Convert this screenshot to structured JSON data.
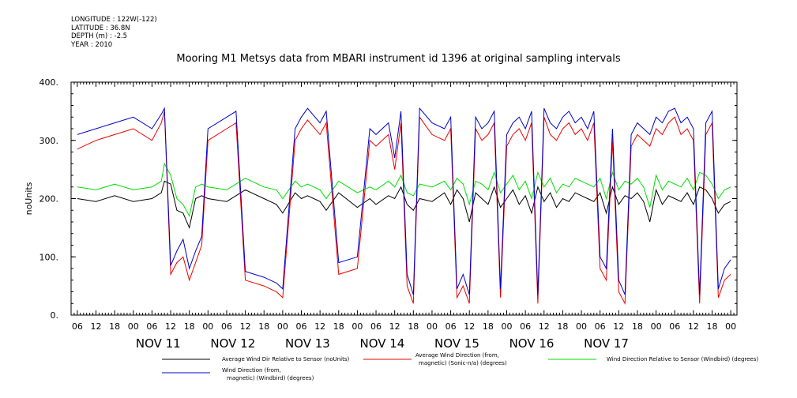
{
  "metadata": {
    "longitude": "LONGITUDE : 122W(-122)",
    "latitude": "LATITUDE : 36.8N",
    "depth": "DEPTH (m) : -2.5",
    "year": "YEAR : 2010"
  },
  "chart_data": {
    "type": "line",
    "title": "Mooring M1 Metsys data from MBARI instrument id 1396 at original sampling intervals",
    "xlabel": "",
    "ylabel": "noUnits",
    "ylim": [
      0,
      400
    ],
    "y_ticks": [
      "0.",
      "100.",
      "200.",
      "300.",
      "400."
    ],
    "x_range_hours": [
      -20,
      194
    ],
    "hour_tick_labels": [
      "00",
      "06",
      "12",
      "18"
    ],
    "day_labels": [
      "NOV 11",
      "NOV 12",
      "NOV 13",
      "NOV 14",
      "NOV 15",
      "NOV 16",
      "NOV 17"
    ],
    "grid": false,
    "legend_placement": "bottom",
    "series": [
      {
        "name": "Average Wind Dir Relative to Sensor (noUnits)",
        "color": "#000000",
        "x": [
          -18,
          -12,
          -6,
          0,
          6,
          9,
          10,
          12,
          14,
          16,
          18,
          20,
          22,
          24,
          30,
          33,
          36,
          42,
          46,
          48,
          52,
          54,
          56,
          60,
          62,
          66,
          72,
          76,
          78,
          82,
          84,
          86,
          88,
          90,
          92,
          96,
          100,
          102,
          104,
          106,
          108,
          110,
          112,
          114,
          116,
          118,
          120,
          122,
          124,
          126,
          128,
          130,
          132,
          134,
          136,
          138,
          140,
          142,
          144,
          146,
          148,
          150,
          152,
          154,
          156,
          158,
          160,
          162,
          164,
          166,
          168,
          170,
          172,
          174,
          176,
          178,
          180,
          182,
          184,
          186,
          188,
          190,
          192
        ],
        "values": [
          200,
          195,
          205,
          195,
          200,
          210,
          230,
          225,
          180,
          175,
          150,
          200,
          205,
          200,
          195,
          205,
          215,
          200,
          190,
          175,
          210,
          200,
          205,
          195,
          180,
          210,
          185,
          200,
          190,
          205,
          200,
          220,
          190,
          180,
          200,
          195,
          210,
          190,
          215,
          200,
          160,
          210,
          200,
          190,
          220,
          185,
          200,
          215,
          190,
          205,
          175,
          220,
          195,
          210,
          185,
          200,
          195,
          210,
          205,
          200,
          195,
          210,
          175,
          220,
          190,
          205,
          200,
          210,
          195,
          160,
          215,
          190,
          205,
          200,
          195,
          210,
          190,
          220,
          215,
          200,
          175,
          190,
          195
        ]
      },
      {
        "name": "Average Wind Direction (from, magnetic) (Sonic-n/a) (degrees)",
        "color": "#ee0000",
        "x": [
          -18,
          -12,
          -6,
          0,
          6,
          9,
          10,
          12,
          14,
          16,
          18,
          20,
          22,
          24,
          30,
          33,
          36,
          42,
          46,
          48,
          52,
          54,
          56,
          60,
          62,
          66,
          72,
          76,
          78,
          82,
          84,
          86,
          88,
          90,
          92,
          96,
          100,
          102,
          104,
          106,
          108,
          110,
          112,
          114,
          116,
          118,
          120,
          122,
          124,
          126,
          128,
          130,
          132,
          134,
          136,
          138,
          140,
          142,
          144,
          146,
          148,
          150,
          152,
          154,
          156,
          158,
          160,
          162,
          164,
          166,
          168,
          170,
          172,
          174,
          176,
          178,
          180,
          182,
          184,
          186,
          188,
          190,
          192
        ],
        "values": [
          285,
          300,
          310,
          320,
          300,
          330,
          350,
          70,
          90,
          100,
          60,
          90,
          120,
          300,
          320,
          330,
          60,
          50,
          40,
          30,
          300,
          320,
          335,
          310,
          330,
          70,
          80,
          300,
          290,
          310,
          250,
          330,
          50,
          20,
          340,
          310,
          300,
          320,
          30,
          50,
          20,
          320,
          300,
          310,
          330,
          30,
          290,
          310,
          320,
          300,
          330,
          20,
          340,
          310,
          300,
          320,
          330,
          310,
          320,
          300,
          330,
          80,
          60,
          300,
          40,
          20,
          290,
          310,
          300,
          290,
          320,
          310,
          330,
          340,
          310,
          320,
          300,
          20,
          310,
          330,
          30,
          60,
          70
        ]
      },
      {
        "name": "Wind Direction Relative to Sensor (Windbird) (degrees)",
        "color": "#00dd00",
        "x": [
          -18,
          -12,
          -6,
          0,
          6,
          9,
          10,
          12,
          14,
          16,
          18,
          20,
          22,
          24,
          30,
          33,
          36,
          42,
          46,
          48,
          52,
          54,
          56,
          60,
          62,
          66,
          72,
          76,
          78,
          82,
          84,
          86,
          88,
          90,
          92,
          96,
          100,
          102,
          104,
          106,
          108,
          110,
          112,
          114,
          116,
          118,
          120,
          122,
          124,
          126,
          128,
          130,
          132,
          134,
          136,
          138,
          140,
          142,
          144,
          146,
          148,
          150,
          152,
          154,
          156,
          158,
          160,
          162,
          164,
          166,
          168,
          170,
          172,
          174,
          176,
          178,
          180,
          182,
          184,
          186,
          188,
          190,
          192
        ],
        "values": [
          220,
          215,
          225,
          215,
          220,
          230,
          260,
          240,
          200,
          190,
          170,
          220,
          225,
          220,
          215,
          225,
          235,
          220,
          215,
          200,
          230,
          220,
          225,
          215,
          200,
          230,
          210,
          220,
          215,
          230,
          220,
          240,
          210,
          205,
          225,
          220,
          230,
          215,
          235,
          225,
          190,
          230,
          225,
          215,
          245,
          210,
          225,
          240,
          215,
          230,
          200,
          245,
          220,
          235,
          210,
          225,
          220,
          235,
          230,
          225,
          220,
          235,
          200,
          245,
          215,
          230,
          225,
          235,
          220,
          185,
          240,
          215,
          230,
          225,
          220,
          235,
          215,
          245,
          240,
          225,
          200,
          215,
          220
        ]
      },
      {
        "name": "Wind Direction (from, magnetic) (Windbird) (degrees)",
        "color": "#0000cc",
        "x": [
          -18,
          -12,
          -6,
          0,
          6,
          9,
          10,
          12,
          14,
          16,
          18,
          20,
          22,
          24,
          30,
          33,
          36,
          42,
          46,
          48,
          52,
          54,
          56,
          60,
          62,
          66,
          72,
          76,
          78,
          82,
          84,
          86,
          88,
          90,
          92,
          96,
          100,
          102,
          104,
          106,
          108,
          110,
          112,
          114,
          116,
          118,
          120,
          122,
          124,
          126,
          128,
          130,
          132,
          134,
          136,
          138,
          140,
          142,
          144,
          146,
          148,
          150,
          152,
          154,
          156,
          158,
          160,
          162,
          164,
          166,
          168,
          170,
          172,
          174,
          176,
          178,
          180,
          182,
          184,
          186,
          188,
          190,
          192
        ],
        "values": [
          310,
          320,
          330,
          340,
          320,
          345,
          355,
          85,
          110,
          130,
          80,
          110,
          135,
          320,
          340,
          350,
          75,
          65,
          55,
          45,
          320,
          340,
          355,
          330,
          350,
          90,
          100,
          320,
          310,
          330,
          270,
          350,
          70,
          35,
          355,
          330,
          320,
          340,
          45,
          70,
          35,
          340,
          320,
          330,
          350,
          45,
          310,
          330,
          340,
          320,
          350,
          35,
          355,
          330,
          320,
          340,
          350,
          330,
          340,
          320,
          350,
          100,
          80,
          320,
          60,
          35,
          310,
          330,
          320,
          310,
          340,
          330,
          350,
          355,
          330,
          340,
          320,
          35,
          330,
          350,
          45,
          80,
          95
        ]
      }
    ],
    "legend": [
      {
        "label": "Average Wind Dir Relative to Sensor (noUnits)",
        "color": "#000000"
      },
      {
        "label": "Average Wind Direction (from, magnetic) (Sonic-n/a) (degrees)",
        "color": "#ee0000"
      },
      {
        "label": "Wind Direction Relative to Sensor (Windbird) (degrees)",
        "color": "#00dd00"
      },
      {
        "label": "Wind Direction (from, magnetic) (Windbird) (degrees)",
        "color": "#0000cc"
      }
    ]
  }
}
